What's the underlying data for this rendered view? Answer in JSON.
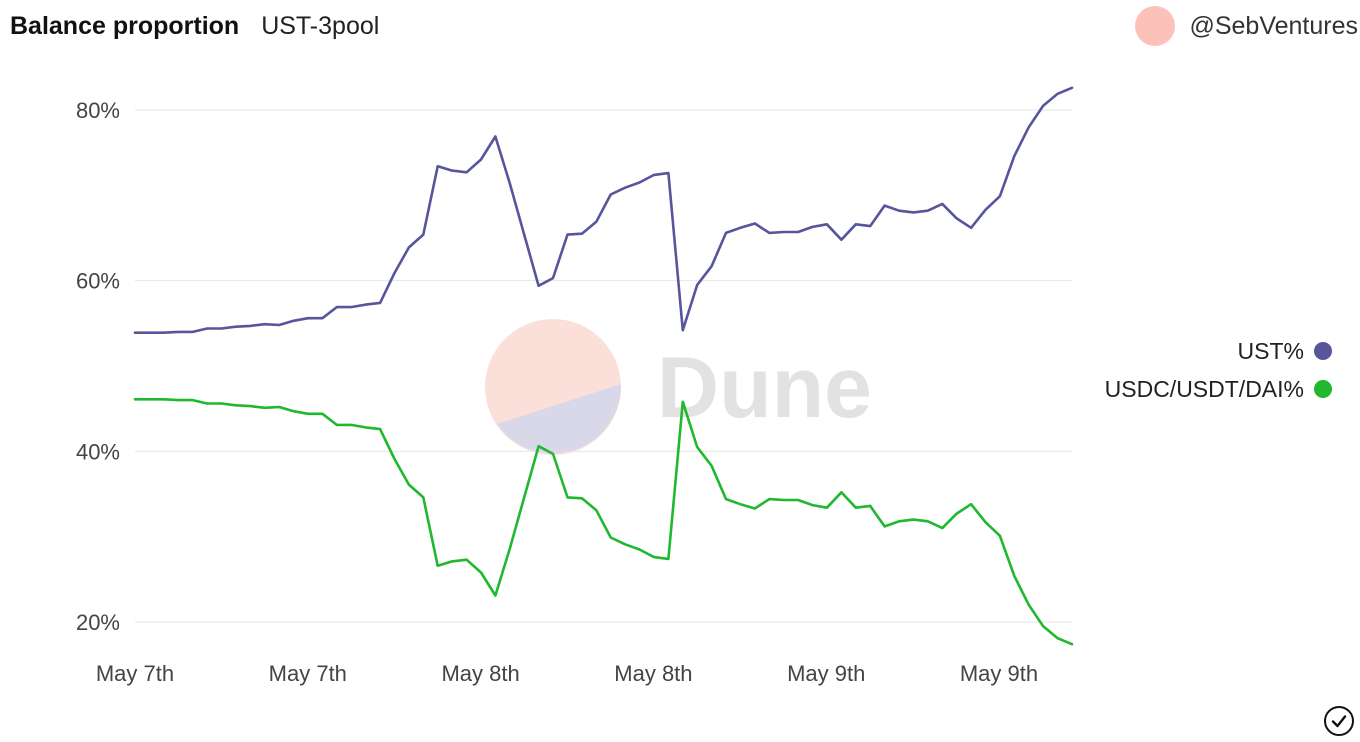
{
  "header": {
    "title": "Balance proportion",
    "subtitle": "UST-3pool"
  },
  "author": {
    "name": "@SebVentures"
  },
  "watermark": {
    "text": "Dune"
  },
  "colors": {
    "ust": "#57559b",
    "stable": "#1fb82f",
    "grid": "#e6e6e6",
    "avatar": "#fcc1b8"
  },
  "icons": {
    "confirm": "check-circle-icon"
  },
  "chart_data": {
    "type": "line",
    "xlabel": "",
    "ylabel": "",
    "ylim": [
      18,
      84
    ],
    "x_ticks": [
      "May 7th",
      "May 7th",
      "May 8th",
      "May 8th",
      "May 9th",
      "May 9th"
    ],
    "y_ticks": [
      {
        "value": 20,
        "label": "20%"
      },
      {
        "value": 40,
        "label": "40%"
      },
      {
        "value": 60,
        "label": "60%"
      },
      {
        "value": 80,
        "label": "80%"
      }
    ],
    "grid": true,
    "legend_position": "right",
    "series": [
      {
        "name": "UST%",
        "color": "#57559b",
        "values": [
          53.9,
          53.9,
          53.9,
          54.0,
          54.0,
          54.4,
          54.4,
          54.6,
          54.7,
          54.9,
          54.8,
          55.3,
          55.6,
          55.6,
          56.9,
          56.9,
          57.2,
          57.4,
          60.9,
          63.9,
          65.4,
          73.4,
          72.9,
          72.7,
          74.2,
          76.9,
          71.4,
          65.4,
          59.4,
          60.3,
          65.4,
          65.5,
          66.9,
          70.1,
          70.9,
          71.5,
          72.4,
          72.6,
          54.2,
          59.5,
          61.7,
          65.6,
          66.2,
          66.7,
          65.6,
          65.7,
          65.7,
          66.3,
          66.6,
          64.8,
          66.6,
          66.4,
          68.8,
          68.2,
          68.0,
          68.2,
          69.0,
          67.3,
          66.2,
          68.3,
          69.9,
          74.6,
          78.0,
          80.5,
          81.9,
          82.6
        ]
      },
      {
        "name": "USDC/USDT/DAI%",
        "color": "#1fb82f",
        "values": [
          46.1,
          46.1,
          46.1,
          46.0,
          46.0,
          45.6,
          45.6,
          45.4,
          45.3,
          45.1,
          45.2,
          44.7,
          44.4,
          44.4,
          43.1,
          43.1,
          42.8,
          42.6,
          39.1,
          36.1,
          34.6,
          26.6,
          27.1,
          27.3,
          25.8,
          23.1,
          28.6,
          34.6,
          40.6,
          39.7,
          34.6,
          34.5,
          33.1,
          29.9,
          29.1,
          28.5,
          27.6,
          27.4,
          45.8,
          40.5,
          38.3,
          34.4,
          33.8,
          33.3,
          34.4,
          34.3,
          34.3,
          33.7,
          33.4,
          35.2,
          33.4,
          33.6,
          31.2,
          31.8,
          32.0,
          31.8,
          31.0,
          32.7,
          33.8,
          31.7,
          30.1,
          25.4,
          22.0,
          19.5,
          18.1,
          17.4
        ]
      }
    ]
  }
}
